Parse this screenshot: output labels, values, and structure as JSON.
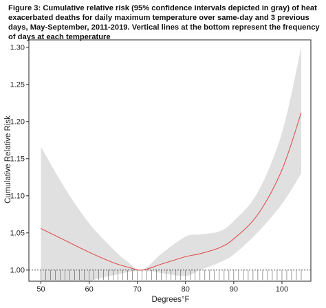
{
  "figure": {
    "caption": "Figure 3: Cumulative relative risk (95% confidence intervals depicted in gray) of heat exacerbated deaths for daily maximum temperature over same-day and 3 previous days, May-September, 2011-2019. Vertical lines at the bottom represent the frequency of days at each temperature"
  },
  "chart_data": {
    "type": "line",
    "xlabel": "Degrees°F",
    "ylabel": "Cumulative Relative Risk",
    "xlim": [
      47.5,
      106
    ],
    "ylim": [
      0.985,
      1.31
    ],
    "x_ticks": [
      50,
      60,
      70,
      80,
      90,
      100
    ],
    "y_ticks": [
      1.0,
      1.05,
      1.1,
      1.15,
      1.2,
      1.25,
      1.3
    ],
    "y_tick_labels": [
      "1.00",
      "1.05",
      "1.10",
      "1.15",
      "1.20",
      "1.25",
      "1.30"
    ],
    "reference_line": {
      "y": 1.0,
      "style": "dotted"
    },
    "grid": false,
    "colors": {
      "estimate": "#e05050",
      "ci_band": "#e0e0e0",
      "rug": "#555555"
    },
    "series": [
      {
        "x": [
          50,
          55,
          60,
          65,
          68,
          71,
          75,
          80,
          83,
          87,
          90,
          95,
          100,
          104
        ],
        "estimate": [
          1.056,
          1.04,
          1.024,
          1.01,
          1.004,
          1.0,
          1.008,
          1.018,
          1.022,
          1.03,
          1.042,
          1.075,
          1.135,
          1.212
        ],
        "ci_lower": [
          0.95,
          0.97,
          0.985,
          0.993,
          0.997,
          1.0,
          0.996,
          0.992,
          1.0,
          1.01,
          1.021,
          1.051,
          1.089,
          1.13
        ],
        "ci_upper": [
          1.166,
          1.11,
          1.063,
          1.028,
          1.011,
          1.0,
          1.022,
          1.045,
          1.048,
          1.052,
          1.066,
          1.105,
          1.185,
          1.3
        ]
      }
    ],
    "rug_positions": [
      50,
      51,
      52,
      53,
      54,
      55,
      56,
      57,
      58,
      59,
      60,
      61,
      62,
      63,
      64,
      65,
      66,
      67,
      68,
      69,
      70,
      71,
      72,
      73,
      74,
      75,
      76,
      77,
      78,
      79,
      80,
      81,
      82,
      83,
      84,
      85,
      86,
      87,
      88,
      89,
      90,
      91,
      92,
      93,
      94,
      95,
      96,
      97,
      98,
      99,
      100,
      101,
      102,
      103,
      104
    ]
  }
}
